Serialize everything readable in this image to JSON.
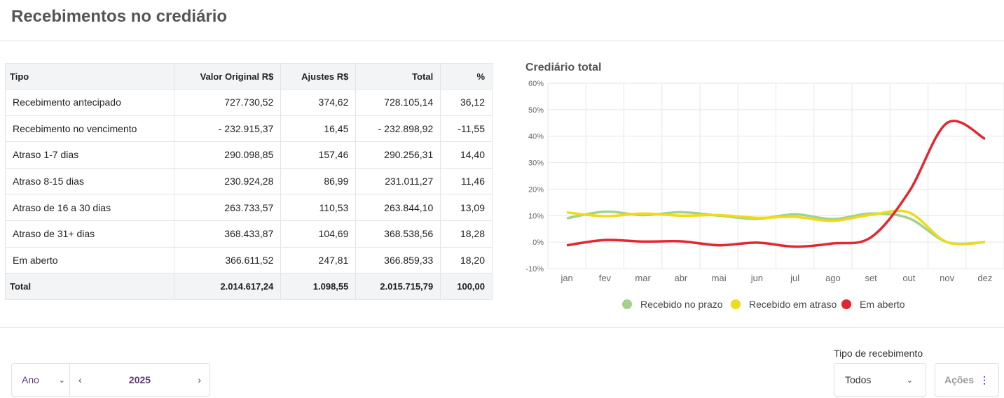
{
  "header": {
    "title": "Recebimentos no crediário"
  },
  "table": {
    "columns": [
      "Tipo",
      "Valor Original R$",
      "Ajustes R$",
      "Total",
      "%"
    ],
    "rows": [
      [
        "Recebimento antecipado",
        "727.730,52",
        "374,62",
        "728.105,14",
        "36,12"
      ],
      [
        "Recebimento no vencimento",
        "- 232.915,37",
        "16,45",
        "- 232.898,92",
        "-11,55"
      ],
      [
        "Atraso 1-7 dias",
        "290.098,85",
        "157,46",
        "290.256,31",
        "14,40"
      ],
      [
        "Atraso 8-15 dias",
        "230.924,28",
        "86,99",
        "231.011,27",
        "11,46"
      ],
      [
        "Atraso de 16 a 30 dias",
        "263.733,57",
        "110,53",
        "263.844,10",
        "13,09"
      ],
      [
        "Atraso de 31+ dias",
        "368.433,87",
        "104,69",
        "368.538,56",
        "18,28"
      ],
      [
        "Em aberto",
        "366.611,52",
        "247,81",
        "366.859,33",
        "18,20"
      ]
    ],
    "total": [
      "Total",
      "2.014.617,24",
      "1.098,55",
      "2.015.715,79",
      "100,00"
    ]
  },
  "chart_data": {
    "type": "line",
    "title": "Crediário total",
    "categories": [
      "jan",
      "fev",
      "mar",
      "abr",
      "mai",
      "jun",
      "jul",
      "ago",
      "set",
      "out",
      "nov",
      "dez"
    ],
    "yticks": [
      "60%",
      "50%",
      "40%",
      "30%",
      "20%",
      "10%",
      "0%",
      "-10%"
    ],
    "ylim": [
      -10,
      60
    ],
    "grid": true,
    "legend": "bottom",
    "series": [
      {
        "name": "Recebido no prazo",
        "color": "#a3d18f",
        "values": [
          9,
          11.5,
          10.2,
          11.3,
          10,
          8.8,
          10.5,
          8.7,
          10.8,
          9,
          0,
          0
        ]
      },
      {
        "name": "Recebido em atraso",
        "color": "#eedc1a",
        "values": [
          11.2,
          9.8,
          10.8,
          10,
          10.2,
          9.2,
          9.5,
          8,
          10.3,
          11.2,
          0,
          0
        ]
      },
      {
        "name": "Em aberto",
        "color": "#e3262f",
        "values": [
          -1.2,
          0.8,
          0.2,
          0.3,
          -1.2,
          -0.2,
          -1.7,
          -0.5,
          1.8,
          19,
          45,
          39
        ]
      }
    ]
  },
  "filters": {
    "period_type": "Ano",
    "year": "2025",
    "receipt_type_label": "Tipo de recebimento",
    "receipt_type": "Todos",
    "actions": "Ações"
  }
}
